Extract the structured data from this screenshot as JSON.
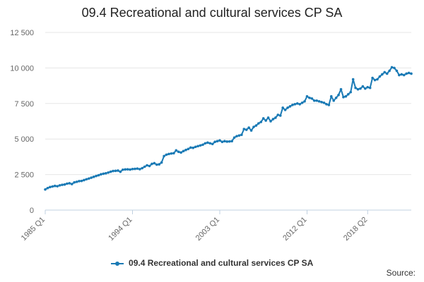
{
  "colors": {
    "series": "#1a7ab5",
    "grid": "#e6e6e6",
    "axis": "#c0d0e0",
    "text": "#666666"
  },
  "chart_data": {
    "type": "line",
    "title": "09.4 Recreational and cultural services CP SA",
    "xlabel": "",
    "ylabel": "",
    "ylim": [
      0,
      12500
    ],
    "yticks": [
      0,
      2500,
      5000,
      7500,
      10000,
      12500
    ],
    "ytick_labels": [
      "0",
      "2 500",
      "5 000",
      "7 500",
      "10 000",
      "12 500"
    ],
    "xtick_labels": [
      "1985 Q1",
      "1994 Q1",
      "2003 Q1",
      "2012 Q1",
      "2018 Q2"
    ],
    "xtick_index": [
      0,
      36,
      72,
      108,
      133
    ],
    "grid": true,
    "legend_position": "bottom-center",
    "source_label": "Source:",
    "series": [
      {
        "name": "09.4 Recreational and cultural services CP SA",
        "start": "1985 Q1",
        "values": [
          1450,
          1550,
          1620,
          1660,
          1700,
          1680,
          1740,
          1780,
          1800,
          1860,
          1890,
          1830,
          1950,
          1990,
          2040,
          2050,
          2110,
          2170,
          2220,
          2280,
          2340,
          2400,
          2450,
          2520,
          2560,
          2590,
          2640,
          2700,
          2750,
          2760,
          2780,
          2700,
          2840,
          2860,
          2870,
          2850,
          2890,
          2900,
          2920,
          2880,
          2950,
          3050,
          3150,
          3100,
          3250,
          3300,
          3200,
          3220,
          3350,
          3800,
          3900,
          3950,
          3980,
          4000,
          4200,
          4100,
          4050,
          4150,
          4230,
          4300,
          4400,
          4380,
          4450,
          4500,
          4550,
          4600,
          4700,
          4750,
          4700,
          4650,
          4800,
          4850,
          4900,
          4800,
          4850,
          4820,
          4830,
          4850,
          5100,
          5200,
          5250,
          5300,
          5700,
          5650,
          5800,
          5600,
          5850,
          5950,
          6100,
          6200,
          6450,
          6300,
          6500,
          6250,
          6400,
          6500,
          6700,
          6650,
          7200,
          7050,
          7200,
          7300,
          7400,
          7450,
          7500,
          7450,
          7550,
          7650,
          8000,
          7900,
          7850,
          7700,
          7700,
          7650,
          7600,
          7550,
          7450,
          7400,
          8000,
          7700,
          7900,
          8100,
          8500,
          7950,
          8000,
          8150,
          8300,
          9200,
          8600,
          8500,
          8550,
          8700,
          8550,
          8650,
          8600,
          9300,
          9150,
          9200,
          9400,
          9550,
          9700,
          9600,
          9800,
          10050,
          10000,
          9800,
          9500,
          9550,
          9500,
          9600,
          9650,
          9600
        ]
      }
    ]
  }
}
